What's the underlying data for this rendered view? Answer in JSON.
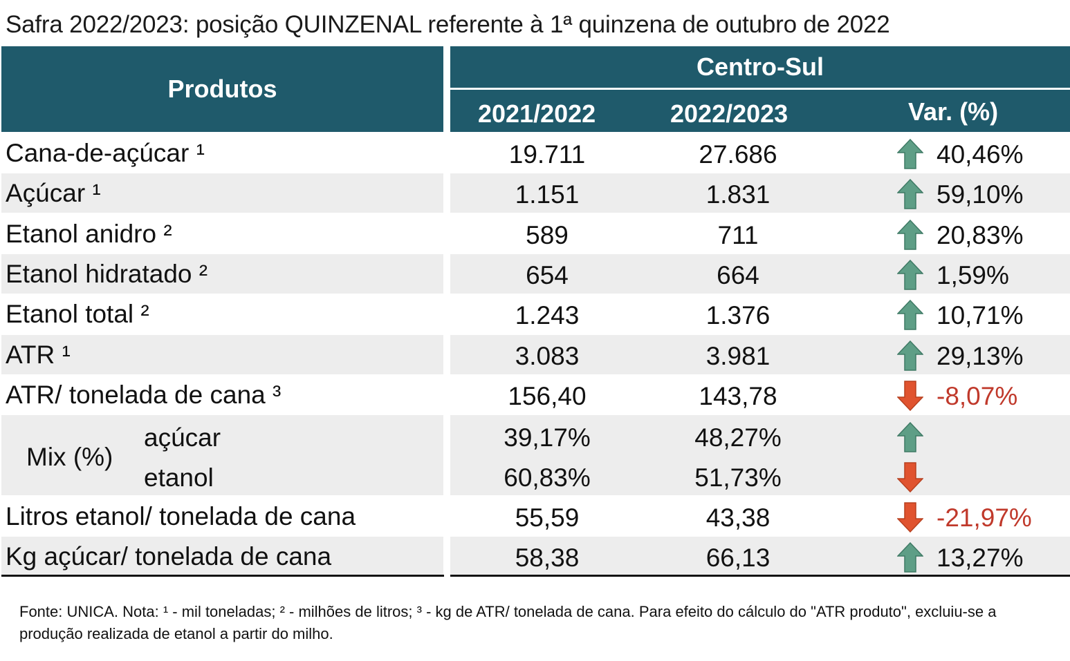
{
  "title": "Safra 2022/2023: posição QUINZENAL referente à 1ª quinzena de outubro de 2022",
  "header": {
    "produtos": "Produtos",
    "region": "Centro-Sul",
    "col1": "2021/2022",
    "col2": "2022/2023",
    "col3": "Var. (%)",
    "bg_color": "#1f5a6b"
  },
  "rows": [
    {
      "label": "Cana-de-açúcar ¹",
      "v1": "19.711",
      "v2": "27.686",
      "var": "40,46%",
      "dir": "up"
    },
    {
      "label": "Açúcar ¹",
      "v1": "1.151",
      "v2": "1.831",
      "var": "59,10%",
      "dir": "up"
    },
    {
      "label": "Etanol anidro ²",
      "v1": "589",
      "v2": "711",
      "var": "20,83%",
      "dir": "up"
    },
    {
      "label": "Etanol hidratado ²",
      "v1": "654",
      "v2": "664",
      "var": "1,59%",
      "dir": "up"
    },
    {
      "label": "Etanol total ²",
      "v1": "1.243",
      "v2": "1.376",
      "var": "10,71%",
      "dir": "up"
    },
    {
      "label": "ATR ¹",
      "v1": "3.083",
      "v2": "3.981",
      "var": "29,13%",
      "dir": "up"
    },
    {
      "label": "ATR/ tonelada de cana ³",
      "v1": "156,40",
      "v2": "143,78",
      "var": "-8,07%",
      "dir": "down"
    }
  ],
  "mix": {
    "label": "Mix (%)",
    "acucar": {
      "label": "açúcar",
      "v1": "39,17%",
      "v2": "48,27%",
      "dir": "up"
    },
    "etanol": {
      "label": "etanol",
      "v1": "60,83%",
      "v2": "51,73%",
      "dir": "down"
    }
  },
  "rows2": [
    {
      "label": "Litros etanol/ tonelada de cana",
      "v1": "55,59",
      "v2": "43,38",
      "var": "-21,97%",
      "dir": "down"
    },
    {
      "label": "Kg açúcar/ tonelada de cana",
      "v1": "58,38",
      "v2": "66,13",
      "var": "13,27%",
      "dir": "up"
    }
  ],
  "footnote": "Fonte: UNICA. Nota: ¹ - mil toneladas; ² - milhões de litros; ³ - kg de ATR/ tonelada de cana. Para efeito do cálculo do \"ATR produto\", excluiu-se a produção realizada de etanol a partir do milho.",
  "colors": {
    "up_arrow": "#5e9e86",
    "down_arrow": "#e0532f",
    "negative_text": "#c0392b",
    "row_shade": "#ededed"
  }
}
